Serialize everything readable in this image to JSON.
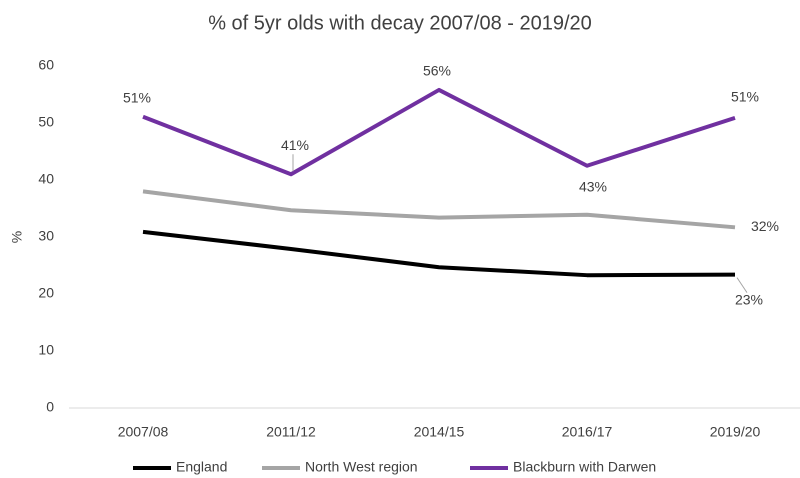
{
  "chart_data": {
    "type": "line",
    "title": "%  of 5yr olds with decay 2007/08 - 2019/20",
    "y_label": "%",
    "categories": [
      "2007/08",
      "2011/12",
      "2014/15",
      "2016/17",
      "2019/20"
    ],
    "series": [
      {
        "name": "England",
        "color": "#000000",
        "values": [
          30.9,
          27.9,
          24.7,
          23.3,
          23.4
        ],
        "value_labels": [
          null,
          null,
          null,
          null,
          "23%"
        ]
      },
      {
        "name": "North West region",
        "color": "#a5a5a5",
        "values": [
          38.0,
          34.7,
          33.4,
          33.9,
          31.7
        ],
        "value_labels": [
          null,
          null,
          null,
          null,
          "32%"
        ]
      },
      {
        "name": "Blackburn with Darwen",
        "color": "#7030a0",
        "values": [
          51.1,
          41.0,
          55.8,
          42.5,
          50.9
        ],
        "value_labels": [
          "51%",
          "41%",
          "56%",
          "43%",
          "51%"
        ]
      }
    ],
    "ylim": [
      0,
      60
    ],
    "yticks": [
      0,
      10,
      20,
      30,
      40,
      50,
      60
    ],
    "grid": false,
    "legend": "bottom"
  }
}
